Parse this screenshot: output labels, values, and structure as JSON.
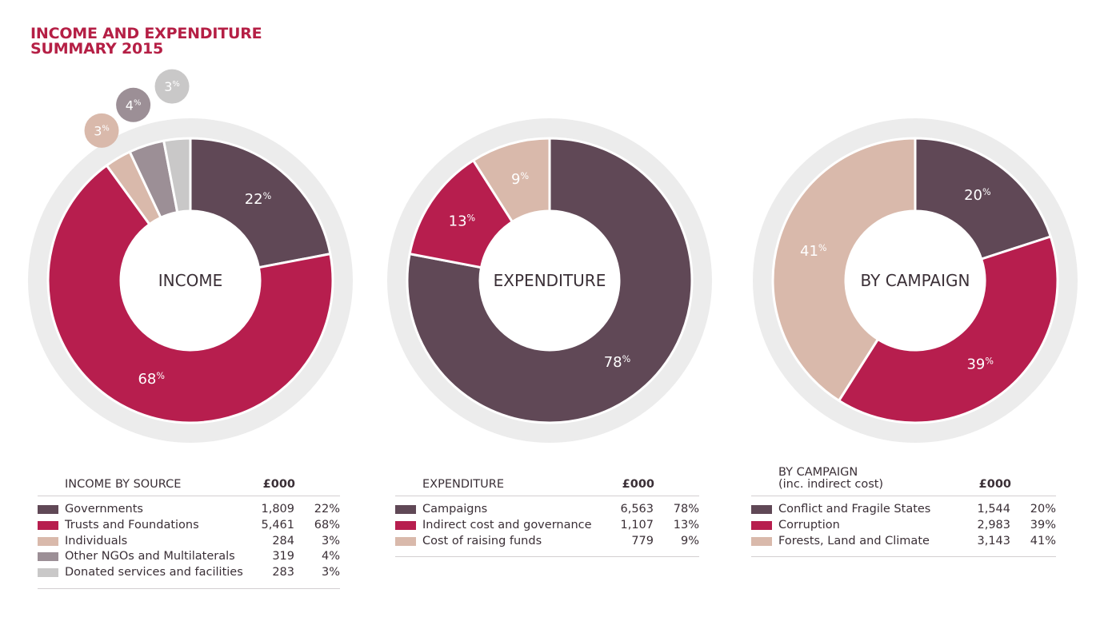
{
  "header": {
    "title_line1": "INCOME AND EXPENDITURE",
    "title_line2": "SUMMARY 2015"
  },
  "colors": {
    "plum": "#604856",
    "crimson": "#b71e4e",
    "tan": "#d9b9ab",
    "mauve": "#9c8f96",
    "grey": "#c9c8c8",
    "ring": "#ececec"
  },
  "chart_data": [
    {
      "type": "pie",
      "center_label": "INCOME",
      "slices": [
        {
          "label": "Governments",
          "value": 22,
          "display": "22",
          "color": "#604856"
        },
        {
          "label": "Trusts and Foundations",
          "value": 68,
          "display": "68",
          "color": "#b71e4e"
        },
        {
          "label": "Individuals",
          "value": 3,
          "display": "3",
          "color": "#d9b9ab"
        },
        {
          "label": "Other NGOs and Multilaterals",
          "value": 4,
          "display": "4",
          "color": "#9c8f96"
        },
        {
          "label": "Donated services and facilities",
          "value": 3,
          "display": "3",
          "color": "#c9c8c8"
        }
      ]
    },
    {
      "type": "pie",
      "center_label": "EXPENDITURE",
      "slices": [
        {
          "label": "Campaigns",
          "value": 78,
          "display": "78",
          "color": "#604856"
        },
        {
          "label": "Indirect cost and governance",
          "value": 13,
          "display": "13",
          "color": "#b71e4e"
        },
        {
          "label": "Cost of raising funds",
          "value": 9,
          "display": "9",
          "color": "#d9b9ab"
        }
      ]
    },
    {
      "type": "pie",
      "center_label": "BY CAMPAIGN",
      "slices": [
        {
          "label": "Conflict and Fragile States",
          "value": 20,
          "display": "20",
          "color": "#604856"
        },
        {
          "label": "Corruption",
          "value": 39,
          "display": "39",
          "color": "#b71e4e"
        },
        {
          "label": "Forests, Land and Climate",
          "value": 41,
          "display": "41",
          "color": "#d9b9ab"
        }
      ]
    }
  ],
  "tables": {
    "income": {
      "title": "INCOME BY SOURCE",
      "currency": "£000",
      "rows": [
        {
          "name": "Governments",
          "value": "1,809",
          "pct": "22%",
          "color": "#604856"
        },
        {
          "name": "Trusts and Foundations",
          "value": "5,461",
          "pct": "68%",
          "color": "#b71e4e"
        },
        {
          "name": "Individuals",
          "value": "284",
          "pct": "3%",
          "color": "#d9b9ab"
        },
        {
          "name": "Other NGOs and Multilaterals",
          "value": "319",
          "pct": "4%",
          "color": "#9c8f96"
        },
        {
          "name": "Donated services and facilities",
          "value": "283",
          "pct": "3%",
          "color": "#c9c8c8"
        }
      ]
    },
    "expenditure": {
      "title": "EXPENDITURE",
      "currency": "£000",
      "rows": [
        {
          "name": "Campaigns",
          "value": "6,563",
          "pct": "78%",
          "color": "#604856"
        },
        {
          "name": "Indirect cost and governance",
          "value": "1,107",
          "pct": "13%",
          "color": "#b71e4e"
        },
        {
          "name": "Cost of raising funds",
          "value": "779",
          "pct": "9%",
          "color": "#d9b9ab"
        }
      ]
    },
    "campaign": {
      "title": "BY CAMPAIGN",
      "subtitle": "(inc. indirect cost)",
      "currency": "£000",
      "rows": [
        {
          "name": "Conflict and Fragile States",
          "value": "1,544",
          "pct": "20%",
          "color": "#604856"
        },
        {
          "name": "Corruption",
          "value": "2,983",
          "pct": "39%",
          "color": "#b71e4e"
        },
        {
          "name": "Forests, Land and Climate",
          "value": "3,143",
          "pct": "41%",
          "color": "#d9b9ab"
        }
      ]
    }
  }
}
